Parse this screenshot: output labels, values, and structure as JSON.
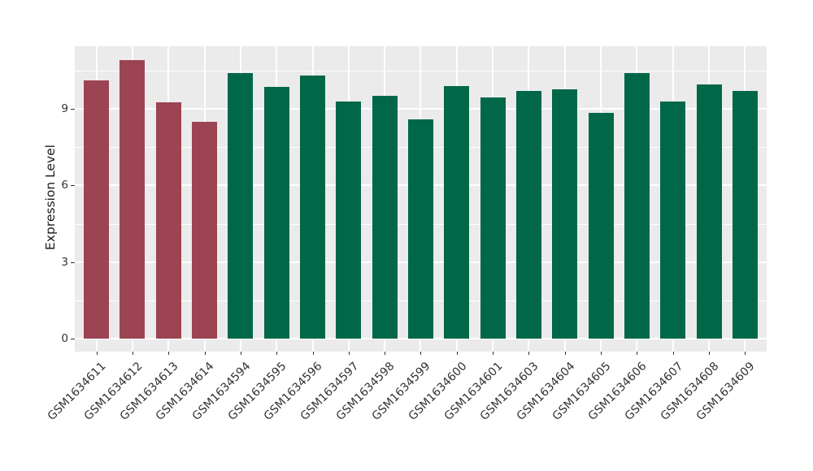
{
  "figure": {
    "background": "#FFFFFF",
    "panel_background": "#EBEBEB",
    "gridline_color": "#FFFFFF",
    "tick_label_color": "#333333",
    "axis_title_color": "#1A1A1A"
  },
  "chart_data": {
    "type": "bar",
    "title": "",
    "xlabel": "",
    "ylabel": "Expression Level",
    "ylim": [
      0,
      11.45
    ],
    "yticks": [
      0,
      3,
      6,
      9
    ],
    "grid": "on",
    "legend": "none",
    "categories": [
      "GSM1634611",
      "GSM1634612",
      "GSM1634613",
      "GSM1634614",
      "GSM1634594",
      "GSM1634595",
      "GSM1634596",
      "GSM1634597",
      "GSM1634598",
      "GSM1634599",
      "GSM1634600",
      "GSM1634601",
      "GSM1634603",
      "GSM1634604",
      "GSM1634605",
      "GSM1634606",
      "GSM1634607",
      "GSM1634608",
      "GSM1634609"
    ],
    "values": [
      10.1,
      10.9,
      9.25,
      8.5,
      10.4,
      9.85,
      10.3,
      9.3,
      9.5,
      8.6,
      9.9,
      9.45,
      9.7,
      9.75,
      8.85,
      10.4,
      9.3,
      9.95,
      9.7
    ],
    "groups": [
      "A",
      "A",
      "A",
      "A",
      "B",
      "B",
      "B",
      "B",
      "B",
      "B",
      "B",
      "B",
      "B",
      "B",
      "B",
      "B",
      "B",
      "B",
      "B"
    ],
    "group_colors": {
      "A": "#9C4453",
      "B": "#006848"
    }
  }
}
